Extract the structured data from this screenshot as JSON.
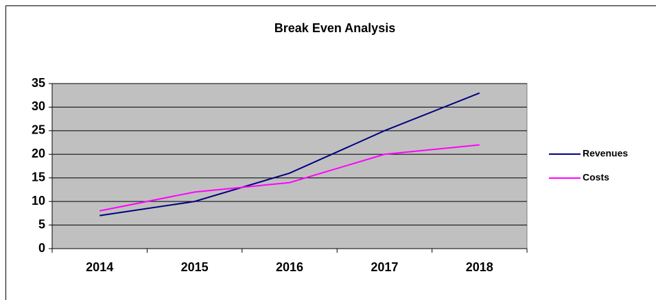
{
  "chart_data": {
    "type": "line",
    "title": "Break Even Analysis",
    "categories": [
      "2014",
      "2015",
      "2016",
      "2017",
      "2018"
    ],
    "series": [
      {
        "name": "Revenues",
        "color": "#000080",
        "values": [
          7,
          10,
          16,
          25,
          33
        ]
      },
      {
        "name": "Costs",
        "color": "#ff00ff",
        "values": [
          8,
          12,
          14,
          20,
          22
        ]
      }
    ],
    "ylim": [
      0,
      35
    ],
    "yticks": [
      0,
      5,
      10,
      15,
      20,
      25,
      30,
      35
    ],
    "grid": true,
    "legend": "right",
    "plot_background": "#c0c0c0"
  }
}
